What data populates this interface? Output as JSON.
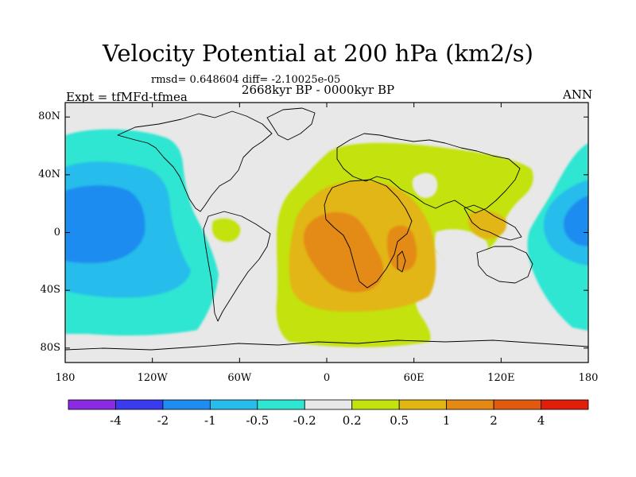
{
  "title": "Velocity Potential at 200 hPa (km2/s)",
  "stats_line": "rmsd= 0.648604  diff= -2.10025e-05",
  "period": "2668kyr BP - 0000kyr BP",
  "experiment": "Expt = tfMFd-tfmea",
  "season": "ANN",
  "map": {
    "projection": "cylindrical equidistant",
    "lon_range": [
      -180,
      180
    ],
    "lat_range": [
      -90,
      90
    ],
    "lat_ticks": [
      {
        "label": "80N",
        "lat": 80
      },
      {
        "label": "40N",
        "lat": 40
      },
      {
        "label": "0",
        "lat": 0
      },
      {
        "label": "40S",
        "lat": -40
      },
      {
        "label": "80S",
        "lat": -80
      }
    ],
    "lon_ticks": [
      {
        "label": "180",
        "lon": -180
      },
      {
        "label": "120W",
        "lon": -120
      },
      {
        "label": "60W",
        "lon": -60
      },
      {
        "label": "0",
        "lon": 0
      },
      {
        "label": "60E",
        "lon": 60
      },
      {
        "label": "120E",
        "lon": 120
      },
      {
        "label": "180",
        "lon": 180
      }
    ],
    "background_color": "#e8e8e8"
  },
  "colorbar": {
    "colors": [
      "#8a2be2",
      "#3a3aee",
      "#1e8cf0",
      "#28bcec",
      "#2ee6d2",
      "#e8e8e8",
      "#c4e20e",
      "#e2b612",
      "#e48a14",
      "#e25a10",
      "#e21e0a"
    ],
    "labels": [
      "-4",
      "-2",
      "-1",
      "-0.5",
      "-0.2",
      "0.2",
      "0.5",
      "1",
      "2",
      "4"
    ]
  }
}
